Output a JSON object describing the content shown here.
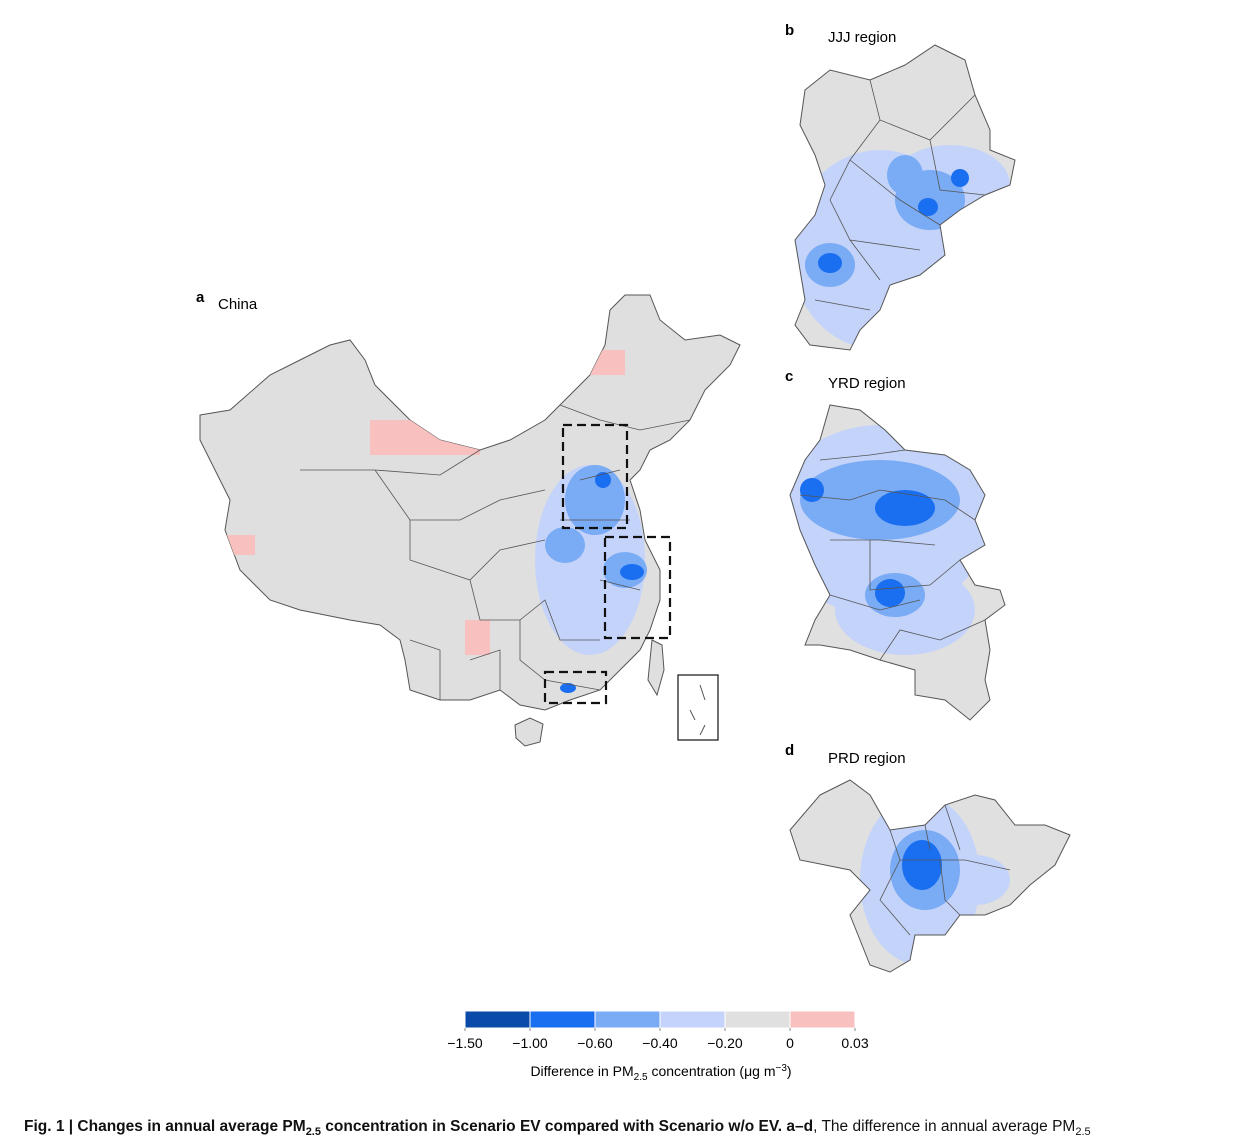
{
  "panels": [
    {
      "letter": "a",
      "title": "China"
    },
    {
      "letter": "b",
      "title": "JJJ region"
    },
    {
      "letter": "c",
      "title": "YRD region"
    },
    {
      "letter": "d",
      "title": "PRD region"
    }
  ],
  "legend": {
    "colors": [
      "#0a4aa8",
      "#1a6ef0",
      "#7aabf5",
      "#c4d3fa",
      "#e0e0e0",
      "#f9c0c0"
    ],
    "ticks": [
      {
        "value": -1.5,
        "label": "−1.50"
      },
      {
        "value": -1.0,
        "label": "−1.00"
      },
      {
        "value": -0.6,
        "label": "−0.60"
      },
      {
        "value": -0.4,
        "label": "−0.40"
      },
      {
        "value": -0.2,
        "label": "−0.20"
      },
      0,
      0.03
    ],
    "label": {
      "text": "Difference in PM",
      "sub": "2.5",
      "text2": " concentration (μg m",
      "sup": "−3",
      "end": ")"
    }
  },
  "caption": {
    "lead": "Fig. 1 | Changes in annual average PM",
    "lead_sub": "2.5",
    "lead_end": " concentration in Scenario EV compared with Scenario w/o EV.",
    "panels": " a–d",
    "rest": ", The difference in annual average PM",
    "rest_sub": "2.5"
  }
}
